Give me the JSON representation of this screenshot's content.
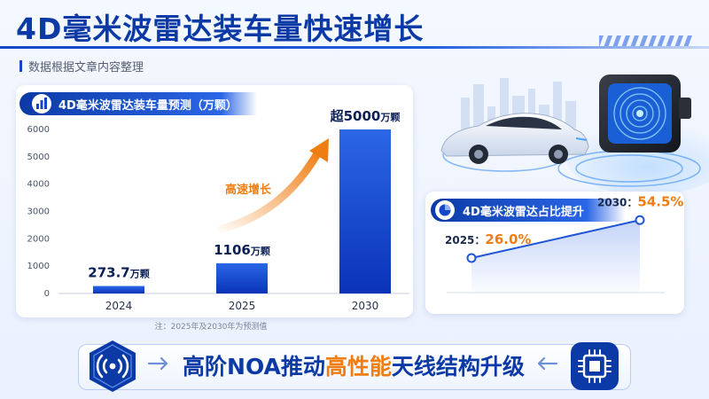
{
  "headline": "4D毫米波雷达装车量快速增长",
  "subtitle": "数据根据文章内容整理",
  "footnote": "注：2025年及2030年为预测值",
  "banner": {
    "part1": "高阶NOA推动",
    "highlight": "高性能",
    "part2": "天线结构升级"
  },
  "colors": {
    "primary": "#0b3aa6",
    "accent": "#f07d12",
    "bar_top": "#2b66e6",
    "bar_bottom": "#0a33b8"
  },
  "icons": {
    "chart_header": "bar-chart-icon",
    "share_header": "pie-chart-icon",
    "banner_left": "radar-signal-icon",
    "banner_right": "chip-icon",
    "hero": "car-and-radar-module-illustration"
  },
  "chart_data": [
    {
      "type": "bar",
      "title": "4D毫米波雷达装车量预测（万颗）",
      "categories": [
        "2024",
        "2025",
        "2030"
      ],
      "values": [
        273.7,
        1106,
        6000
      ],
      "data_labels": [
        {
          "value": "273.7",
          "unit": "万颗"
        },
        {
          "value": "1106",
          "unit": "万颗"
        },
        {
          "value": "超5000",
          "unit": "万颗"
        }
      ],
      "y_ticks": [
        0,
        1000,
        2000,
        3000,
        4000,
        5000,
        6000
      ],
      "ylim": [
        0,
        6000
      ],
      "grid": false,
      "annotation": "高速增长"
    },
    {
      "type": "line",
      "title": "4D毫米波雷达占比提升",
      "x": [
        "2025",
        "2030"
      ],
      "values": [
        26.0,
        54.5
      ],
      "point_labels": [
        {
          "year_label": "2025：",
          "value_label": "26.0%"
        },
        {
          "year_label": "2030：",
          "value_label": "54.5%"
        }
      ],
      "ylim": [
        0,
        70
      ]
    }
  ]
}
